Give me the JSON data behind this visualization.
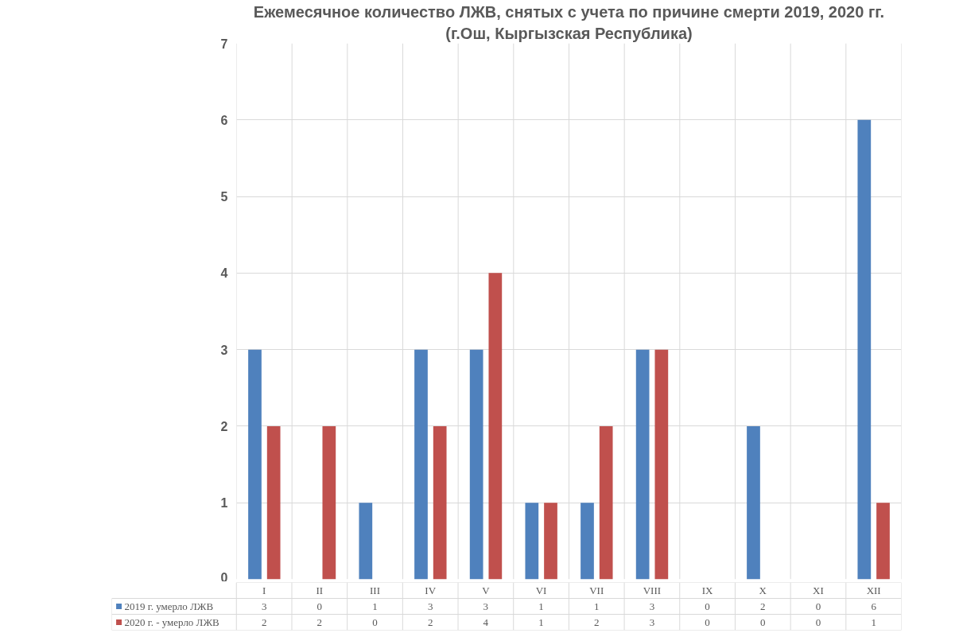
{
  "chart_data": {
    "type": "bar",
    "title": "Ежемесячное количество ЛЖВ, снятых с учета по причине смерти 2019, 2020 гг.",
    "subtitle": "(г.Ош, Кыргызская Республика)",
    "categories": [
      "I",
      "II",
      "III",
      "IV",
      "V",
      "VI",
      "VII",
      "VIII",
      "IX",
      "X",
      "XI",
      "XII"
    ],
    "series": [
      {
        "name": "2019 г. умерло ЛЖВ",
        "color": "#4f81bd",
        "values": [
          3,
          0,
          1,
          3,
          3,
          1,
          1,
          3,
          0,
          2,
          0,
          6
        ]
      },
      {
        "name": "2020 г. - умерло ЛЖВ",
        "color": "#c0504d",
        "values": [
          2,
          2,
          0,
          2,
          4,
          1,
          2,
          3,
          0,
          0,
          0,
          1
        ]
      }
    ],
    "ylim": [
      0,
      7
    ],
    "yticks": [
      0,
      1,
      2,
      3,
      4,
      5,
      6,
      7
    ],
    "grid": true,
    "legend": "bottom",
    "data_labels": true
  }
}
